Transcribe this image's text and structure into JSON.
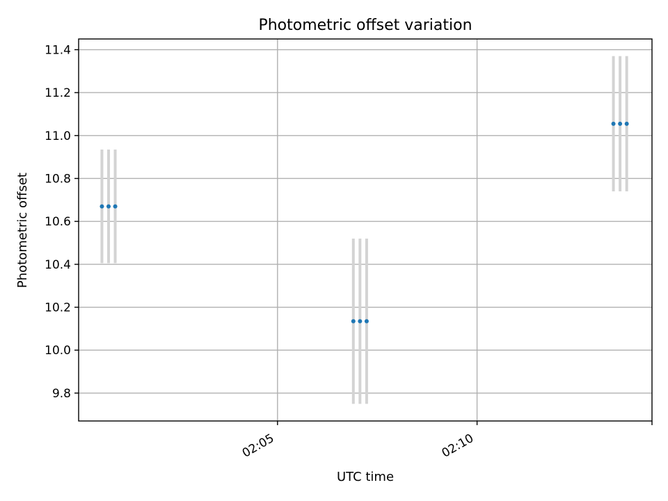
{
  "chart_data": {
    "type": "scatter",
    "title": "Photometric offset variation",
    "xlabel": "UTC time",
    "ylabel": "Photometric offset",
    "x_axis_type": "time",
    "xlim": [
      "02:00:01",
      "02:14:23"
    ],
    "ylim": [
      9.67,
      11.45
    ],
    "grid": true,
    "x_ticks": [
      "02:05",
      "02:10"
    ],
    "y_ticks": [
      9.8,
      10.0,
      10.2,
      10.4,
      10.6,
      10.8,
      11.0,
      11.2,
      11.4
    ],
    "points": [
      {
        "x": "02:00:36",
        "y": 10.67,
        "err": 0.265
      },
      {
        "x": "02:00:46",
        "y": 10.67,
        "err": 0.265
      },
      {
        "x": "02:00:56",
        "y": 10.67,
        "err": 0.265
      },
      {
        "x": "02:06:54",
        "y": 10.135,
        "err": 0.385
      },
      {
        "x": "02:07:04",
        "y": 10.135,
        "err": 0.385
      },
      {
        "x": "02:07:14",
        "y": 10.135,
        "err": 0.385
      },
      {
        "x": "02:13:25",
        "y": 11.055,
        "err": 0.315
      },
      {
        "x": "02:13:35",
        "y": 11.055,
        "err": 0.315
      },
      {
        "x": "02:13:45",
        "y": 11.055,
        "err": 0.315
      }
    ],
    "colors": {
      "marker": "#1f77b4",
      "errorbar": "#d3d3d3",
      "grid": "#b0b0b0",
      "axes": "#000000"
    }
  }
}
